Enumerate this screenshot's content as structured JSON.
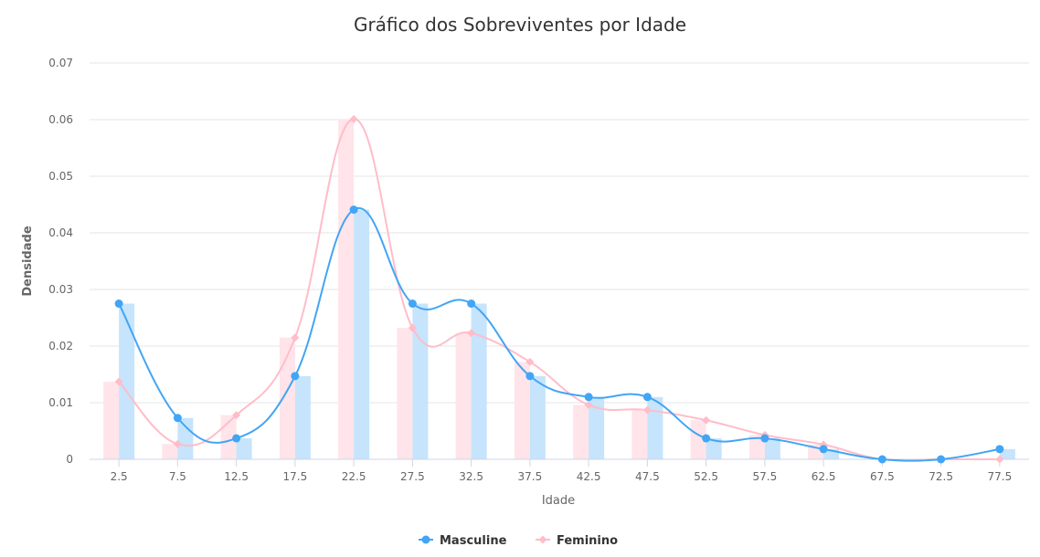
{
  "chart_data": {
    "type": "bar",
    "title": "Gráfico dos Sobreviventes por Idade",
    "xlabel": "Idade",
    "ylabel": "Densidade",
    "categories": [
      "2.5",
      "7.5",
      "12.5",
      "17.5",
      "22.5",
      "27.5",
      "32.5",
      "37.5",
      "42.5",
      "47.5",
      "52.5",
      "57.5",
      "62.5",
      "67.5",
      "72.5",
      "77.5"
    ],
    "y_ticks": [
      "0",
      "0.01",
      "0.02",
      "0.03",
      "0.04",
      "0.05",
      "0.06",
      "0.07"
    ],
    "ylim": [
      0,
      0.07
    ],
    "grid": true,
    "legend_position": "bottom",
    "series": [
      {
        "name": "Masculine",
        "color": "#42a5f5",
        "bar_color": "#c6e4fc",
        "marker": "circle",
        "values": [
          0.0275,
          0.0073,
          0.0037,
          0.0147,
          0.0441,
          0.0275,
          0.0275,
          0.0147,
          0.011,
          0.011,
          0.0037,
          0.0037,
          0.0018,
          0.0,
          0.0,
          0.0018
        ]
      },
      {
        "name": "Feminino",
        "color": "#ffbdc9",
        "bar_color": "#ffe4ea",
        "marker": "diamond",
        "values": [
          0.0137,
          0.0027,
          0.0078,
          0.0215,
          0.0601,
          0.0232,
          0.0223,
          0.0172,
          0.0096,
          0.0087,
          0.0069,
          0.0043,
          0.0026,
          0.0,
          0.0,
          0.0
        ]
      }
    ]
  }
}
